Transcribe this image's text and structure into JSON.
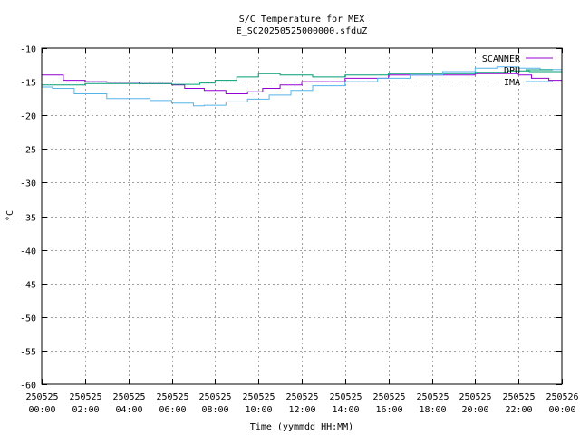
{
  "chart_data": {
    "type": "line",
    "title": "S/C Temperature for MEX",
    "subtitle": "E_SC20250525000000.sfduZ",
    "xlabel": "Time (yymmdd HH:MM)",
    "ylabel": "°C",
    "ylim": [
      -60,
      -10
    ],
    "yticks": [
      -10,
      -15,
      -20,
      -25,
      -30,
      -35,
      -40,
      -45,
      -50,
      -55,
      -60
    ],
    "xlim": [
      0,
      24
    ],
    "xticks": [
      {
        "h": 0,
        "date": "250525",
        "time": "00:00"
      },
      {
        "h": 2,
        "date": "250525",
        "time": "02:00"
      },
      {
        "h": 4,
        "date": "250525",
        "time": "04:00"
      },
      {
        "h": 6,
        "date": "250525",
        "time": "06:00"
      },
      {
        "h": 8,
        "date": "250525",
        "time": "08:00"
      },
      {
        "h": 10,
        "date": "250525",
        "time": "10:00"
      },
      {
        "h": 12,
        "date": "250525",
        "time": "12:00"
      },
      {
        "h": 14,
        "date": "250525",
        "time": "14:00"
      },
      {
        "h": 16,
        "date": "250525",
        "time": "16:00"
      },
      {
        "h": 18,
        "date": "250525",
        "time": "18:00"
      },
      {
        "h": 20,
        "date": "250525",
        "time": "20:00"
      },
      {
        "h": 22,
        "date": "250525",
        "time": "22:00"
      },
      {
        "h": 24,
        "date": "250526",
        "time": "00:00"
      }
    ],
    "grid": true,
    "legend_position": "top-right",
    "series": [
      {
        "name": "SCANNER",
        "color": "#9400d3",
        "x": [
          0,
          1.0,
          2.0,
          3.0,
          4.5,
          6.0,
          6.6,
          7.5,
          8.5,
          9.5,
          10.2,
          11.0,
          12.0,
          14.0,
          16.0,
          20.0,
          22.0,
          22.6,
          23.4,
          24.0
        ],
        "y": [
          -14.0,
          -14.8,
          -15.0,
          -15.1,
          -15.3,
          -15.5,
          -16.0,
          -16.3,
          -16.8,
          -16.5,
          -16.0,
          -15.5,
          -15.0,
          -14.5,
          -14.0,
          -13.8,
          -14.0,
          -14.5,
          -14.8,
          -15.0
        ]
      },
      {
        "name": "DPU",
        "color": "#009e73",
        "x": [
          0,
          2.0,
          4.0,
          6.0,
          7.3,
          8.0,
          9.0,
          10.0,
          11.0,
          12.5,
          14.0,
          16.0,
          18.0,
          20.0,
          21.5,
          22.5,
          24.0
        ],
        "y": [
          -15.5,
          -15.3,
          -15.3,
          -15.4,
          -15.2,
          -14.8,
          -14.3,
          -13.8,
          -14.0,
          -14.3,
          -14.0,
          -13.8,
          -13.8,
          -13.6,
          -13.4,
          -13.5,
          -13.6
        ]
      },
      {
        "name": "IMA",
        "color": "#56b4e9",
        "x": [
          0,
          0.5,
          1.5,
          3.0,
          5.0,
          6.0,
          7.0,
          7.5,
          8.5,
          9.5,
          10.5,
          11.5,
          12.5,
          14.0,
          15.5,
          17.0,
          18.5,
          20.0,
          21.0,
          22.0,
          23.0,
          24.0
        ],
        "y": [
          -15.8,
          -16.0,
          -16.8,
          -17.5,
          -17.8,
          -18.2,
          -18.6,
          -18.5,
          -18.0,
          -17.6,
          -17.0,
          -16.3,
          -15.6,
          -15.0,
          -14.5,
          -14.0,
          -13.5,
          -13.0,
          -12.8,
          -13.0,
          -13.2,
          -13.4
        ]
      }
    ]
  }
}
